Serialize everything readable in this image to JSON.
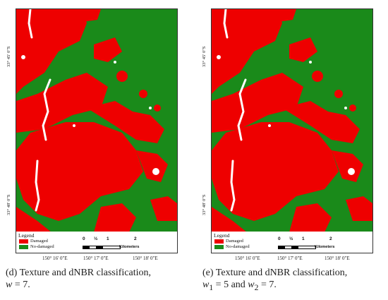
{
  "colors": {
    "damaged": "#ee0000",
    "no_damaged": "#1a8a1a",
    "road": "#ffffff"
  },
  "panels": [
    {
      "id": "d",
      "lat_labels": [
        "33° 45' 0\"S",
        "33° 48' 0\"S"
      ],
      "lon_labels": [
        "150° 16' 0\"E",
        "150° 17' 0\"E",
        "150° 18' 0\"E"
      ],
      "legend": {
        "title": "Legend",
        "damaged": "Damaged",
        "no_damaged": "No-damaged"
      },
      "scale": {
        "ticks": [
          "0",
          "½",
          "1",
          "2"
        ],
        "unit": "Kilometers"
      },
      "caption": {
        "tag": "(d)",
        "text": "Texture and dNBR classification,",
        "math": "w",
        "eq": " = 7."
      }
    },
    {
      "id": "e",
      "lat_labels": [
        "33° 45' 0\"S",
        "33° 48' 0\"S"
      ],
      "lon_labels": [
        "150° 16' 0\"E",
        "150° 17' 0\"E",
        "150° 18' 0\"E"
      ],
      "legend": {
        "title": "Legend",
        "damaged": "Damaged",
        "no_damaged": "No-damaged"
      },
      "scale": {
        "ticks": [
          "0",
          "½",
          "1",
          "2"
        ],
        "unit": "Kilometers"
      },
      "caption": {
        "tag": "(e)",
        "text": "Texture and dNBR classification,",
        "math1": "w",
        "sub1": "1",
        "eq1": " = 5 and ",
        "math2": "w",
        "sub2": "2",
        "eq2": " = 7."
      }
    }
  ]
}
